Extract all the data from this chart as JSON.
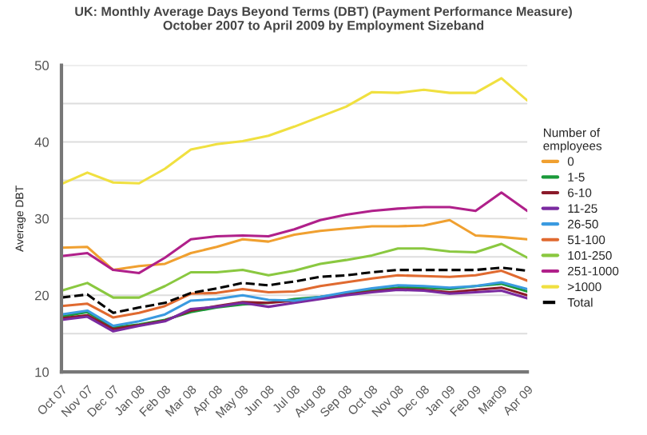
{
  "chart_data": {
    "type": "line",
    "title": "UK: Monthly Average Days Beyond Terms (DBT) (Payment Performance Measure)\nOctober 2007 to April 2009 by Employment Sizeband",
    "ylabel": "Average DBT",
    "legend_title": "Number of\nemployees",
    "legend": "right",
    "grid": "y",
    "categories": [
      "Oct 07",
      "Nov 07",
      "Dec 07",
      "Jan 08",
      "Feb 08",
      "Mar 08",
      "Apr 08",
      "May 08",
      "Jun 08",
      "Jul 08",
      "Aug 08",
      "Sep 08",
      "Oct 08",
      "Nov 08",
      "Dec 08",
      "Jan 09",
      "Feb 09",
      "Mar09",
      "Apr 09"
    ],
    "ylim": [
      10,
      50
    ],
    "yticks": [
      10,
      {
        "value": 15,
        "label": null
      },
      20,
      {
        "value": 25,
        "label": null
      },
      30,
      {
        "value": 35,
        "label": null
      },
      40,
      {
        "value": 45,
        "label": null
      },
      50
    ],
    "series": [
      {
        "name": "0",
        "color": "#f0a030",
        "values": [
          26.2,
          26.3,
          23.3,
          23.8,
          24.1,
          25.5,
          26.3,
          27.3,
          27.0,
          27.9,
          28.4,
          28.7,
          29.0,
          29.0,
          29.1,
          29.8,
          27.8,
          27.6,
          27.3
        ]
      },
      {
        "name": "1-5",
        "color": "#1a9a3a",
        "values": [
          17.2,
          17.8,
          15.8,
          16.2,
          16.8,
          17.8,
          18.4,
          18.8,
          19.0,
          19.5,
          19.8,
          20.2,
          20.7,
          21.0,
          21.0,
          20.8,
          21.2,
          21.5,
          20.5
        ]
      },
      {
        "name": "6-10",
        "color": "#8b1a2a",
        "values": [
          17.0,
          17.4,
          15.6,
          16.1,
          16.7,
          18.0,
          18.6,
          19.1,
          19.0,
          19.3,
          null,
          20.1,
          20.5,
          20.8,
          20.7,
          20.4,
          20.7,
          21.0,
          20.0
        ]
      },
      {
        "name": "11-25",
        "color": "#7a2aa0",
        "values": [
          16.8,
          17.2,
          15.3,
          16.0,
          16.6,
          18.2,
          18.5,
          19.0,
          18.5,
          19.0,
          19.5,
          20.0,
          20.4,
          20.7,
          20.6,
          20.2,
          20.4,
          20.6,
          19.6
        ]
      },
      {
        "name": "26-50",
        "color": "#3a9ae0",
        "values": [
          17.5,
          18.0,
          16.0,
          16.6,
          17.5,
          19.3,
          19.5,
          20.0,
          19.4,
          19.3,
          19.8,
          20.4,
          20.9,
          21.3,
          21.2,
          21.0,
          21.2,
          21.7,
          20.8
        ]
      },
      {
        "name": "51-100",
        "color": "#e06a30",
        "values": [
          18.6,
          18.9,
          17.1,
          17.7,
          18.6,
          20.2,
          20.3,
          20.8,
          20.4,
          20.5,
          21.2,
          21.7,
          22.2,
          22.6,
          22.5,
          22.4,
          22.6,
          23.2,
          21.9
        ]
      },
      {
        "name": "101-250",
        "color": "#8ac840",
        "values": [
          20.6,
          21.6,
          19.7,
          19.7,
          21.2,
          23.0,
          23.0,
          23.3,
          22.6,
          23.2,
          24.1,
          24.6,
          25.2,
          26.1,
          26.1,
          25.7,
          25.6,
          26.7,
          24.9
        ]
      },
      {
        "name": "251-1000",
        "color": "#b0208a",
        "values": [
          25.1,
          25.5,
          23.3,
          22.9,
          24.9,
          27.3,
          27.7,
          27.8,
          27.7,
          28.6,
          29.8,
          30.5,
          31.0,
          31.3,
          31.5,
          31.5,
          31.0,
          33.4,
          31.0
        ]
      },
      {
        "name": ">1000",
        "color": "#f0e040",
        "values": [
          34.5,
          36.0,
          34.7,
          34.6,
          36.5,
          39.0,
          39.7,
          40.1,
          40.8,
          42.0,
          43.3,
          44.6,
          46.5,
          46.4,
          46.8,
          46.4,
          46.4,
          48.3,
          45.4
        ]
      },
      {
        "name": "Total",
        "color": "#000000",
        "line_style": "dashed",
        "values": [
          19.7,
          20.1,
          17.7,
          18.4,
          19.0,
          20.3,
          20.9,
          21.6,
          21.3,
          21.8,
          22.4,
          22.6,
          23.0,
          23.3,
          23.3,
          23.3,
          23.3,
          23.6,
          23.2
        ]
      }
    ]
  }
}
